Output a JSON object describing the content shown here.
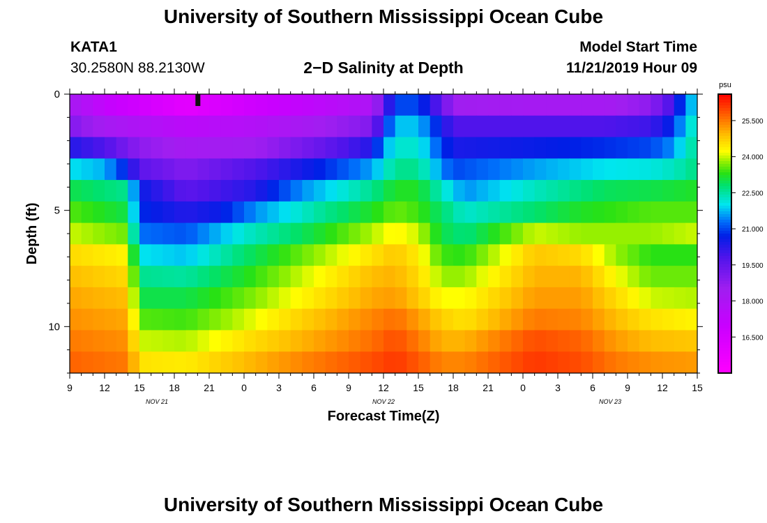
{
  "header": {
    "title": "University of Southern Mississippi Ocean Cube",
    "station": "KATA1",
    "coords": "30.2580N 88.2130W",
    "subtitle": "2−D Salinity at Depth",
    "start_label": "Model Start Time",
    "start_value": "11/21/2019 Hour 09"
  },
  "footer": {
    "title": "University of Southern Mississippi Ocean Cube"
  },
  "chart_data": {
    "type": "heatmap",
    "title": "2-D Salinity at Depth",
    "xlabel": "Forecast Time(Z)",
    "ylabel": "Depth (ft)",
    "x_hours": [
      0,
      54
    ],
    "x_tick_labels": [
      "9",
      "12",
      "15",
      "18",
      "21",
      "0",
      "3",
      "6",
      "9",
      "12",
      "15",
      "18",
      "21",
      "0",
      "3",
      "6",
      "9",
      "12",
      "15"
    ],
    "date_labels": [
      {
        "label": "NOV  21",
        "hour": 7.5
      },
      {
        "label": "NOV  22",
        "hour": 27
      },
      {
        "label": "NOV  23",
        "hour": 46.5
      }
    ],
    "y_range": [
      0,
      12
    ],
    "y_tick_labels": [
      {
        "value": 0,
        "label": "0"
      },
      {
        "value": 5,
        "label": "5"
      },
      {
        "value": 10,
        "label": "10"
      }
    ],
    "colorbar": {
      "unit": "psu",
      "range": [
        15.0,
        26.6
      ],
      "ticks": [
        "25.500",
        "24.000",
        "22.500",
        "21.000",
        "19.500",
        "18.000",
        "16.500"
      ],
      "tick_values": [
        25.5,
        24.0,
        22.5,
        21.0,
        19.5,
        18.0,
        16.5
      ]
    },
    "marker": {
      "hour": 11,
      "depth": 0
    },
    "depth_rows": [
      {
        "depth": 0,
        "points": [
          [
            0,
            18.3
          ],
          [
            3,
            17.2
          ],
          [
            10,
            16.0
          ],
          [
            16,
            16.8
          ],
          [
            22,
            17.5
          ],
          [
            26,
            18.0
          ],
          [
            27,
            19.5
          ],
          [
            28,
            21.0
          ],
          [
            30,
            21.0
          ],
          [
            32,
            19.5
          ],
          [
            33,
            18.5
          ],
          [
            40,
            18.3
          ],
          [
            46,
            18.3
          ],
          [
            50,
            18.8
          ],
          [
            52,
            20.0
          ],
          [
            53,
            21.5
          ],
          [
            54,
            22.0
          ]
        ]
      },
      {
        "depth": 1,
        "points": [
          [
            0,
            19.0
          ],
          [
            3,
            18.3
          ],
          [
            10,
            17.5
          ],
          [
            16,
            17.8
          ],
          [
            22,
            18.5
          ],
          [
            26,
            19.0
          ],
          [
            27,
            20.5
          ],
          [
            28,
            21.8
          ],
          [
            30,
            21.8
          ],
          [
            32,
            20.5
          ],
          [
            33,
            19.8
          ],
          [
            40,
            19.8
          ],
          [
            46,
            19.8
          ],
          [
            50,
            20.0
          ],
          [
            52,
            20.8
          ],
          [
            53,
            22.0
          ],
          [
            54,
            22.3
          ]
        ]
      },
      {
        "depth": 2,
        "points": [
          [
            0,
            20.3
          ],
          [
            3,
            19.8
          ],
          [
            6,
            18.8
          ],
          [
            10,
            18.3
          ],
          [
            16,
            18.5
          ],
          [
            22,
            19.5
          ],
          [
            26,
            20.3
          ],
          [
            27,
            21.5
          ],
          [
            28,
            22.2
          ],
          [
            30,
            22.2
          ],
          [
            32,
            21.0
          ],
          [
            33,
            20.4
          ],
          [
            40,
            20.6
          ],
          [
            46,
            20.8
          ],
          [
            50,
            21.0
          ],
          [
            52,
            21.5
          ],
          [
            53,
            22.3
          ],
          [
            54,
            22.5
          ]
        ]
      },
      {
        "depth": 3,
        "points": [
          [
            0,
            22.0
          ],
          [
            3,
            21.7
          ],
          [
            5,
            20.6
          ],
          [
            6,
            19.6
          ],
          [
            10,
            19.0
          ],
          [
            16,
            19.8
          ],
          [
            22,
            20.8
          ],
          [
            26,
            21.6
          ],
          [
            28,
            22.6
          ],
          [
            30,
            22.6
          ],
          [
            32,
            21.5
          ],
          [
            33,
            21.0
          ],
          [
            40,
            21.6
          ],
          [
            46,
            22.0
          ],
          [
            50,
            22.1
          ],
          [
            52,
            22.3
          ],
          [
            54,
            22.7
          ]
        ]
      },
      {
        "depth": 4,
        "points": [
          [
            0,
            23.0
          ],
          [
            5,
            22.6
          ],
          [
            6,
            20.6
          ],
          [
            10,
            19.6
          ],
          [
            16,
            20.3
          ],
          [
            20,
            21.5
          ],
          [
            26,
            22.6
          ],
          [
            28,
            23.2
          ],
          [
            30,
            23.2
          ],
          [
            32,
            22.3
          ],
          [
            34,
            21.5
          ],
          [
            40,
            22.3
          ],
          [
            46,
            22.9
          ],
          [
            50,
            23.0
          ],
          [
            54,
            23.2
          ]
        ]
      },
      {
        "depth": 5,
        "points": [
          [
            0,
            23.5
          ],
          [
            5,
            23.0
          ],
          [
            6,
            20.8
          ],
          [
            10,
            20.3
          ],
          [
            13,
            20.6
          ],
          [
            16,
            21.5
          ],
          [
            22,
            22.6
          ],
          [
            26,
            23.2
          ],
          [
            28,
            23.6
          ],
          [
            30,
            23.4
          ],
          [
            32,
            22.8
          ],
          [
            34,
            22.2
          ],
          [
            40,
            22.8
          ],
          [
            44,
            23.2
          ],
          [
            50,
            23.5
          ],
          [
            54,
            23.5
          ]
        ]
      },
      {
        "depth": 6,
        "points": [
          [
            0,
            24.0
          ],
          [
            5,
            23.6
          ],
          [
            6,
            21.3
          ],
          [
            10,
            21.1
          ],
          [
            15,
            22.2
          ],
          [
            20,
            22.9
          ],
          [
            26,
            23.9
          ],
          [
            28,
            24.3
          ],
          [
            30,
            24.0
          ],
          [
            32,
            23.0
          ],
          [
            34,
            22.7
          ],
          [
            40,
            24.0
          ],
          [
            44,
            23.8
          ],
          [
            50,
            23.8
          ],
          [
            54,
            24.0
          ]
        ]
      },
      {
        "depth": 7,
        "points": [
          [
            0,
            24.6
          ],
          [
            5,
            24.3
          ],
          [
            6,
            22.0
          ],
          [
            10,
            21.8
          ],
          [
            15,
            22.8
          ],
          [
            20,
            23.6
          ],
          [
            26,
            24.5
          ],
          [
            28,
            24.8
          ],
          [
            30,
            24.4
          ],
          [
            32,
            23.4
          ],
          [
            34,
            23.3
          ],
          [
            40,
            24.8
          ],
          [
            44,
            24.6
          ],
          [
            47,
            23.8
          ],
          [
            50,
            23.3
          ],
          [
            54,
            23.3
          ]
        ]
      },
      {
        "depth": 8,
        "points": [
          [
            0,
            24.9
          ],
          [
            5,
            24.6
          ],
          [
            6,
            22.6
          ],
          [
            10,
            22.5
          ],
          [
            15,
            23.2
          ],
          [
            20,
            24.0
          ],
          [
            26,
            24.9
          ],
          [
            28,
            25.0
          ],
          [
            30,
            24.6
          ],
          [
            32,
            23.8
          ],
          [
            34,
            23.8
          ],
          [
            40,
            25.0
          ],
          [
            44,
            25.0
          ],
          [
            47,
            24.2
          ],
          [
            50,
            23.6
          ],
          [
            54,
            23.6
          ]
        ]
      },
      {
        "depth": 9,
        "points": [
          [
            0,
            25.1
          ],
          [
            5,
            24.9
          ],
          [
            6,
            23.0
          ],
          [
            10,
            23.0
          ],
          [
            15,
            23.6
          ],
          [
            20,
            24.3
          ],
          [
            26,
            25.1
          ],
          [
            28,
            25.2
          ],
          [
            30,
            24.8
          ],
          [
            32,
            24.2
          ],
          [
            34,
            24.2
          ],
          [
            40,
            25.2
          ],
          [
            44,
            25.2
          ],
          [
            47,
            24.6
          ],
          [
            50,
            24.0
          ],
          [
            54,
            23.9
          ]
        ]
      },
      {
        "depth": 10,
        "points": [
          [
            0,
            25.3
          ],
          [
            5,
            25.1
          ],
          [
            6,
            23.5
          ],
          [
            10,
            23.4
          ],
          [
            15,
            24.0
          ],
          [
            20,
            24.7
          ],
          [
            26,
            25.4
          ],
          [
            28,
            25.6
          ],
          [
            30,
            25.2
          ],
          [
            32,
            24.7
          ],
          [
            34,
            24.5
          ],
          [
            40,
            25.5
          ],
          [
            44,
            25.4
          ],
          [
            47,
            24.9
          ],
          [
            50,
            24.5
          ],
          [
            54,
            24.3
          ]
        ]
      },
      {
        "depth": 11,
        "points": [
          [
            0,
            25.5
          ],
          [
            5,
            25.3
          ],
          [
            6,
            24.0
          ],
          [
            10,
            23.9
          ],
          [
            15,
            24.5
          ],
          [
            20,
            25.0
          ],
          [
            26,
            25.6
          ],
          [
            28,
            25.9
          ],
          [
            30,
            25.5
          ],
          [
            32,
            25.0
          ],
          [
            34,
            25.0
          ],
          [
            40,
            25.9
          ],
          [
            44,
            25.7
          ],
          [
            47,
            25.2
          ],
          [
            50,
            24.9
          ],
          [
            54,
            24.8
          ]
        ]
      },
      {
        "depth": 12,
        "points": [
          [
            0,
            25.7
          ],
          [
            5,
            25.5
          ],
          [
            6,
            24.5
          ],
          [
            10,
            24.4
          ],
          [
            15,
            24.9
          ],
          [
            20,
            25.4
          ],
          [
            26,
            25.9
          ],
          [
            28,
            26.1
          ],
          [
            30,
            25.8
          ],
          [
            32,
            25.4
          ],
          [
            34,
            25.4
          ],
          [
            40,
            26.1
          ],
          [
            44,
            25.9
          ],
          [
            47,
            25.5
          ],
          [
            50,
            25.3
          ],
          [
            54,
            25.2
          ]
        ]
      }
    ]
  }
}
